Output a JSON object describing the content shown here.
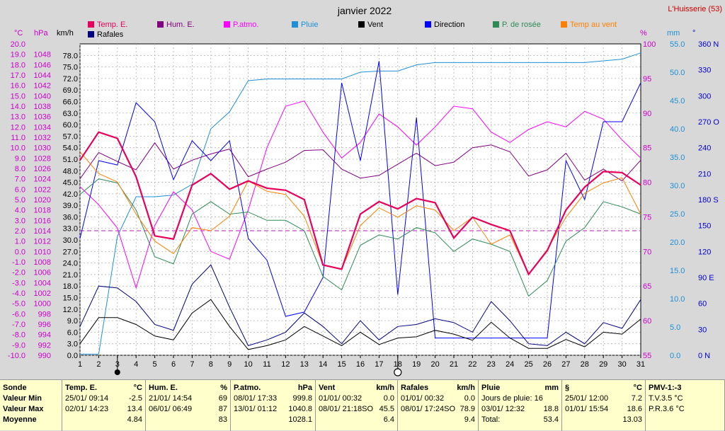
{
  "title": "janvier 2022",
  "station": "L'Huisserie (53)",
  "axis_units": {
    "c": "°C",
    "hpa": "hPa",
    "kmh": "km/h",
    "pct": "%",
    "mm": "mm",
    "deg": "°"
  },
  "legend": [
    {
      "label": "Temp. E.",
      "color": "#e8005a"
    },
    {
      "label": "Hum. E.",
      "color": "#800080"
    },
    {
      "label": "P.atmo.",
      "color": "#ff00ff"
    },
    {
      "label": "Pluie",
      "color": "#1e90d8"
    },
    {
      "label": "Vent",
      "color": "#000000"
    },
    {
      "label": "Direction",
      "color": "#0000ff"
    },
    {
      "label": "P. de rosée",
      "color": "#2e8b57"
    },
    {
      "label": "Temp au vent",
      "color": "#ff8000"
    },
    {
      "label": "Rafales",
      "color": "#000080"
    }
  ],
  "chart_data": {
    "type": "line",
    "title": "janvier 2022",
    "x": [
      1,
      2,
      3,
      4,
      5,
      6,
      7,
      8,
      9,
      10,
      11,
      12,
      13,
      14,
      15,
      16,
      17,
      18,
      19,
      20,
      21,
      22,
      23,
      24,
      25,
      26,
      27,
      28,
      29,
      30,
      31
    ],
    "y_axes": {
      "temp_c": {
        "range": [
          -10,
          20
        ],
        "ticks": [
          "20.0",
          "19.0",
          "18.0",
          "17.0",
          "16.0",
          "15.0",
          "14.0",
          "13.0",
          "12.0",
          "11.0",
          "10.0",
          "9.0",
          "8.0",
          "7.0",
          "6.0",
          "5.0",
          "4.0",
          "3.0",
          "2.0",
          "1.0",
          "0.0",
          "-1.0",
          "-2.0",
          "-3.0",
          "-4.0",
          "-5.0",
          "-6.0",
          "-7.0",
          "-8.0",
          "-9.0",
          "-10.0"
        ]
      },
      "pressure_hpa": {
        "range": [
          990,
          1050
        ],
        "ticks": [
          "1048",
          "1046",
          "1044",
          "1042",
          "1040",
          "1038",
          "1036",
          "1034",
          "1032",
          "1030",
          "1028",
          "1026",
          "1024",
          "1022",
          "1020",
          "1018",
          "1016",
          "1014",
          "1012",
          "1010",
          "1008",
          "1006",
          "1004",
          "1002",
          "1000",
          "998",
          "996",
          "994",
          "992",
          "990"
        ]
      },
      "wind_kmh": {
        "range": [
          0,
          81
        ],
        "ticks": [
          "78.0",
          "75.0",
          "72.0",
          "69.0",
          "66.0",
          "63.0",
          "60.0",
          "57.0",
          "54.0",
          "51.0",
          "48.0",
          "45.0",
          "42.0",
          "39.0",
          "36.0",
          "33.0",
          "30.0",
          "27.0",
          "24.0",
          "21.0",
          "18.0",
          "15.0",
          "12.0",
          "9.0",
          "6.0",
          "3.0",
          "0.0"
        ]
      },
      "humidity_pct": {
        "range": [
          55,
          100
        ],
        "ticks": [
          "100",
          "95",
          "90",
          "85",
          "80",
          "75",
          "70",
          "65",
          "60",
          "55"
        ]
      },
      "rain_mm": {
        "range": [
          0,
          55
        ],
        "ticks": [
          "55.0",
          "50.0",
          "45.0",
          "40.0",
          "35.0",
          "30.0",
          "25.0",
          "20.0",
          "15.0",
          "10.0",
          "5.0",
          "0.0"
        ]
      },
      "direction_deg": {
        "range": [
          0,
          360
        ],
        "ticks": [
          "360 N",
          "330",
          "300",
          "270 O",
          "240",
          "210",
          "180 S",
          "150",
          "120",
          "90 E",
          "60",
          "30",
          "0 N"
        ]
      }
    },
    "series": [
      {
        "name": "Temp. E.",
        "color": "#e8005a",
        "axis": "temp_c",
        "values": [
          8.8,
          11.5,
          10.9,
          7.2,
          1.5,
          1.2,
          6.4,
          7.5,
          6.0,
          6.8,
          6.1,
          5.9,
          5.0,
          -1.3,
          -1.7,
          3.6,
          4.8,
          4.1,
          5.1,
          4.7,
          1.3,
          3.3,
          2.6,
          2.0,
          -2.2,
          0.1,
          4.0,
          6.2,
          7.7,
          7.6,
          6.4
        ]
      },
      {
        "name": "Hum. E.",
        "color": "#800080",
        "axis": "humidity_pct",
        "values": [
          80.5,
          84.3,
          83.0,
          81.8,
          85.7,
          81.9,
          83.2,
          84.1,
          84.8,
          80.8,
          81.9,
          82.9,
          84.6,
          84.7,
          81.9,
          80.6,
          81.0,
          82.6,
          84.2,
          82.4,
          82.9,
          85.0,
          85.4,
          84.4,
          80.9,
          81.8,
          84.2,
          80.3,
          81.9,
          80.2,
          83.2
        ]
      },
      {
        "name": "P.atmo.",
        "color": "#ff00ff",
        "axis": "pressure_hpa",
        "values": [
          1022.5,
          1019.0,
          1014.5,
          1003.0,
          1015.0,
          1021.5,
          1018.0,
          1010.0,
          1008.5,
          1018.0,
          1030.0,
          1038.0,
          1039.0,
          1033.0,
          1028.0,
          1031.0,
          1036.5,
          1034.0,
          1030.5,
          1034.0,
          1038.0,
          1037.5,
          1033.0,
          1031.0,
          1033.5,
          1035.0,
          1034.0,
          1037.0,
          1035.5,
          1031.5,
          1028.0
        ]
      },
      {
        "name": "Pluie",
        "color": "#1e90d8",
        "axis": "rain_mm",
        "values": [
          0.2,
          0.2,
          21.0,
          28.0,
          28.0,
          28.3,
          30.2,
          40.0,
          43.0,
          48.5,
          48.8,
          48.8,
          48.8,
          48.8,
          48.8,
          50.0,
          50.2,
          50.2,
          51.3,
          51.7,
          51.7,
          51.7,
          51.7,
          51.7,
          51.7,
          51.7,
          51.7,
          51.7,
          52.0,
          52.3,
          53.4
        ]
      },
      {
        "name": "Vent",
        "color": "#000000",
        "axis": "wind_kmh",
        "values": [
          3.0,
          9.8,
          9.8,
          8.0,
          5.0,
          4.0,
          11.0,
          14.5,
          7.5,
          1.5,
          2.5,
          4.0,
          7.5,
          5.0,
          2.5,
          6.0,
          2.8,
          4.5,
          4.8,
          6.5,
          5.5,
          3.9,
          8.6,
          4.5,
          1.8,
          1.8,
          4.1,
          2.2,
          6.0,
          5.5,
          9.4
        ]
      },
      {
        "name": "Rafales",
        "color": "#000080",
        "axis": "wind_kmh",
        "values": [
          7.5,
          18.0,
          17.5,
          14.0,
          8.0,
          6.5,
          18.5,
          23.5,
          12.5,
          2.5,
          4.0,
          6.0,
          11.0,
          7.5,
          3.0,
          9.0,
          4.0,
          7.5,
          8.0,
          9.5,
          8.5,
          6.0,
          14.0,
          9.0,
          3.0,
          2.5,
          6.0,
          3.0,
          8.5,
          7.0,
          14.5
        ]
      },
      {
        "name": "Direction",
        "color": "#0000ff",
        "axis": "direction_deg",
        "values": [
          135,
          225,
          220,
          292,
          270,
          203,
          248,
          225,
          248,
          135,
          110,
          45,
          50,
          90,
          315,
          225,
          340,
          70,
          275,
          20,
          20,
          20,
          20,
          20,
          20,
          20,
          225,
          180,
          270,
          270,
          315
        ]
      },
      {
        "name": "P. de rosée",
        "color": "#2e8b57",
        "axis": "temp_c",
        "values": [
          5.5,
          7.0,
          6.6,
          4.0,
          -0.5,
          -1.2,
          3.6,
          4.8,
          3.6,
          3.8,
          3.0,
          3.0,
          2.0,
          -2.4,
          -3.7,
          0.6,
          1.6,
          1.2,
          2.3,
          1.8,
          0.0,
          1.2,
          0.7,
          0.0,
          -4.3,
          -2.8,
          1.0,
          2.3,
          4.8,
          4.3,
          3.6
        ]
      },
      {
        "name": "Temp au vent",
        "color": "#ff8000",
        "axis": "temp_c",
        "values": [
          9.6,
          7.5,
          6.7,
          3.6,
          1.0,
          -0.2,
          2.3,
          2.0,
          3.4,
          6.8,
          5.8,
          5.5,
          3.4,
          -1.3,
          -1.7,
          2.5,
          4.2,
          3.3,
          4.4,
          4.0,
          2.0,
          3.3,
          0.7,
          1.6,
          -2.2,
          0.2,
          3.3,
          5.6,
          6.6,
          7.1,
          3.6
        ]
      }
    ],
    "threshold": {
      "axis": "temp_c",
      "value": 2.0,
      "color": "#cc44cc"
    },
    "moon_markers": [
      {
        "day": 3,
        "phase": "new"
      },
      {
        "day": 18,
        "phase": "full"
      }
    ]
  },
  "table": [
    {
      "header": "Sonde",
      "unit": "",
      "rows": [
        "Valeur Min",
        "Valeur Max",
        "Moyenne"
      ],
      "type": "labels"
    },
    {
      "header": "Temp. E.",
      "unit": "°C",
      "rows": [
        [
          "25/01/ 09:14",
          "-2.5"
        ],
        [
          "02/01/ 14:23",
          "13.4"
        ],
        [
          "",
          "4.84"
        ]
      ]
    },
    {
      "header": "Hum. E.",
      "unit": "%",
      "rows": [
        [
          "21/01/ 14:54",
          "69"
        ],
        [
          "06/01/ 06:49",
          "87"
        ],
        [
          "",
          "83"
        ]
      ]
    },
    {
      "header": "P.atmo.",
      "unit": "hPa",
      "rows": [
        [
          "08/01/ 17:33",
          "999.8"
        ],
        [
          "13/01/ 01:12",
          "1040.8"
        ],
        [
          "",
          "1028.1"
        ]
      ]
    },
    {
      "header": "Vent",
      "unit": "km/h",
      "rows": [
        [
          "01/01/ 00:32",
          "0.0"
        ],
        [
          "08/01/ 21:18SO",
          "45.5"
        ],
        [
          "",
          "6.4"
        ]
      ]
    },
    {
      "header": "Rafales",
      "unit": "km/h",
      "rows": [
        [
          "01/01/ 00:32",
          "0.0"
        ],
        [
          "08/01/ 17:24SO",
          "78.9"
        ],
        [
          "",
          "9.4"
        ]
      ]
    },
    {
      "header": "Pluie",
      "unit": "mm",
      "rows": [
        [
          "Jours de pluie: 16",
          ""
        ],
        [
          "03/01/ 12:32",
          "18.8"
        ],
        [
          "Total:",
          "53.4"
        ]
      ]
    },
    {
      "header": "§",
      "unit": "°C",
      "rows": [
        [
          "25/01/ 12:00",
          "7.2"
        ],
        [
          "01/01/ 15:54",
          "18.6"
        ],
        [
          "",
          "13.03"
        ]
      ]
    },
    {
      "header": "PMV-1:-3",
      "unit": "",
      "rows": [
        [
          "T.V.3.5 °C",
          ""
        ],
        [
          "P.R.3.6 °C",
          ""
        ],
        [
          "",
          ""
        ]
      ]
    }
  ]
}
